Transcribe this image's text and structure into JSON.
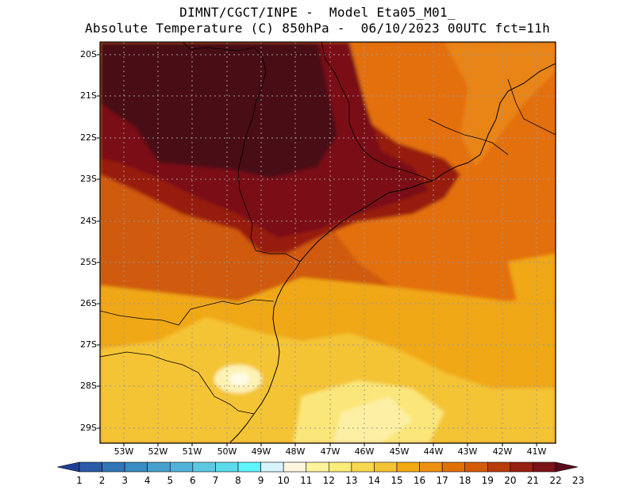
{
  "header": {
    "line1": "DIMNT/CGCT/INPE -  Model Eta05_M01_",
    "line2": "Absolute Temperature (C) 850hPa -  06/10/2023 00UTC fct=11h"
  },
  "map": {
    "lon_range": [
      -53.75,
      -40.5
    ],
    "lat_range": [
      -29.4,
      -19.8
    ],
    "lat_ticks": [
      "20S",
      "21S",
      "22S",
      "23S",
      "24S",
      "25S",
      "26S",
      "27S",
      "28S",
      "29S"
    ],
    "lon_ticks": [
      "53W",
      "52W",
      "51W",
      "50W",
      "49W",
      "48W",
      "47W",
      "46W",
      "45W",
      "44W",
      "43W",
      "42W",
      "41W"
    ],
    "coastline_color": "#000000",
    "grid": "dotted"
  },
  "colorbar": {
    "labels": [
      "1",
      "2",
      "3",
      "4",
      "5",
      "6",
      "7",
      "8",
      "9",
      "10",
      "11",
      "12",
      "13",
      "14",
      "15",
      "16",
      "17",
      "18",
      "19",
      "20",
      "21",
      "22",
      "23"
    ],
    "colors": [
      "#1f3f94",
      "#2a5aa8",
      "#3274b6",
      "#3a8cc2",
      "#46a0cc",
      "#52b4d8",
      "#5ec8e4",
      "#5adcec",
      "#5ef4fc",
      "#d8f4fc",
      "#fef6de",
      "#fef29a",
      "#fcec78",
      "#f8d850",
      "#f4c434",
      "#f0aa14",
      "#ee9010",
      "#e07008",
      "#d45c08",
      "#b83c08",
      "#982010",
      "#7a1418",
      "#5a0c1c"
    ]
  }
}
